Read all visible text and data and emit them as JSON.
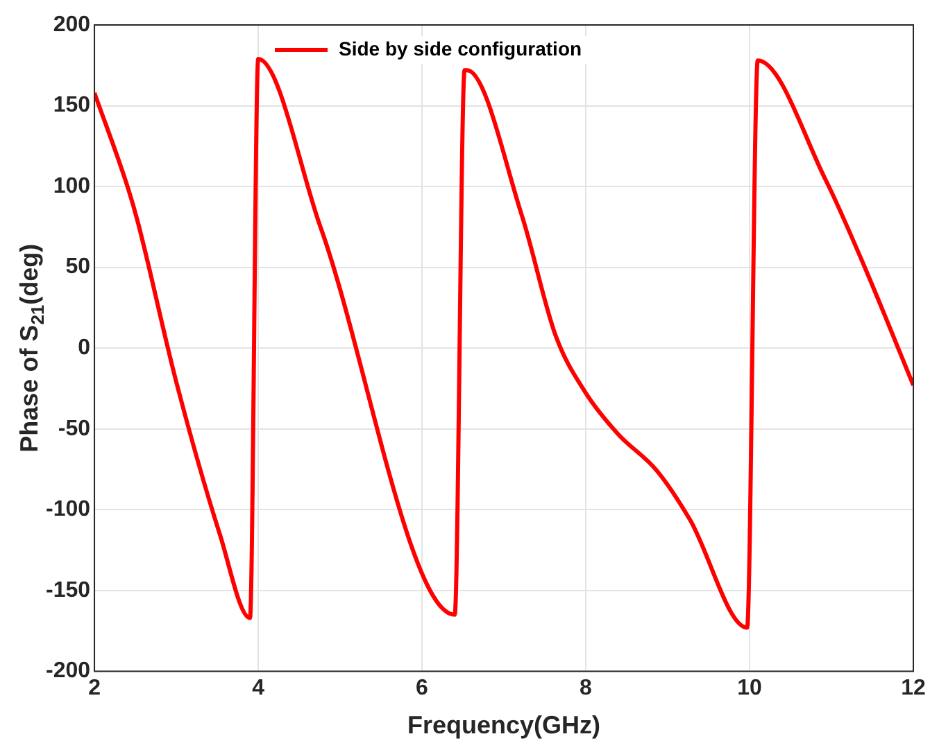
{
  "chart_data": {
    "type": "line",
    "xlabel": "Frequency(GHz)",
    "ylabel": "Phase of S$_{21}$(deg)",
    "series": [
      {
        "name": "Side by side configuration",
        "color": "#ff0000",
        "x": [
          2,
          2.41,
          2.53,
          3.0,
          3.53,
          3.9,
          4.0,
          4.76,
          6.4,
          6.52,
          6.55,
          7.22,
          7.63,
          7.99,
          8.39,
          8.87,
          9.27,
          9.97,
          10.1,
          10.93,
          11.39,
          12
        ],
        "values": [
          158,
          99,
          78,
          -21,
          -115,
          -167,
          179,
          75,
          -165,
          172,
          172,
          82,
          8,
          -27,
          -53,
          -76,
          -106,
          -173,
          178,
          104,
          52,
          -23
        ]
      }
    ],
    "xlim": [
      2,
      12
    ],
    "xticks": [
      2,
      4,
      6,
      8,
      10,
      12
    ],
    "ylim": [
      -200,
      200
    ],
    "yticks": [
      -200,
      -150,
      -100,
      -50,
      0,
      50,
      100,
      150,
      200
    ],
    "grid": true,
    "legend": "top",
    "marker": "none",
    "line_style": "solid"
  }
}
